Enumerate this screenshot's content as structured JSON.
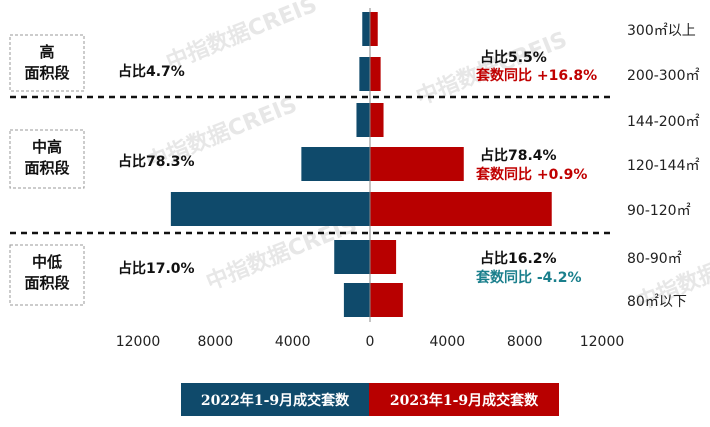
{
  "chart_data": {
    "type": "bar",
    "orientation": "horizontal-butterfly",
    "categories": [
      "300㎡以上",
      "200-300㎡",
      "144-200㎡",
      "120-144㎡",
      "90-120㎡",
      "80-90㎡",
      "80㎡以下"
    ],
    "series": [
      {
        "name": "2022年1-9月成交套数",
        "side": "left",
        "color": "#0f4a6b",
        "values": [
          400,
          550,
          700,
          3550,
          10300,
          1850,
          1350
        ]
      },
      {
        "name": "2023年1-9月成交套数",
        "side": "right",
        "color": "#b80000",
        "values": [
          400,
          550,
          700,
          4850,
          9400,
          1350,
          1700
        ]
      }
    ],
    "xlim": [
      -12000,
      12000
    ],
    "x_ticks": [
      "12000",
      "8000",
      "4000",
      "0",
      "4000",
      "8000",
      "12000"
    ],
    "x_tick_values": [
      -12000,
      -8000,
      -4000,
      0,
      4000,
      8000,
      12000
    ],
    "grid": false,
    "legend_placement": "bottom",
    "groups": [
      {
        "label_line1": "高",
        "label_line2": "面积段",
        "left_share": "占比4.7%",
        "right_share": "占比5.5%",
        "right_yoy": "套数同比 +16.8%",
        "yoy_color": "#c00000"
      },
      {
        "label_line1": "中高",
        "label_line2": "面积段",
        "left_share": "占比78.3%",
        "right_share": "占比78.4%",
        "right_yoy": "套数同比 +0.9%",
        "yoy_color": "#c00000"
      },
      {
        "label_line1": "中低",
        "label_line2": "面积段",
        "left_share": "占比17.0%",
        "right_share": "占比16.2%",
        "right_yoy": "套数同比 -4.2%",
        "yoy_color": "#1a7f8c"
      }
    ],
    "watermark": "中指数据CREIS"
  }
}
